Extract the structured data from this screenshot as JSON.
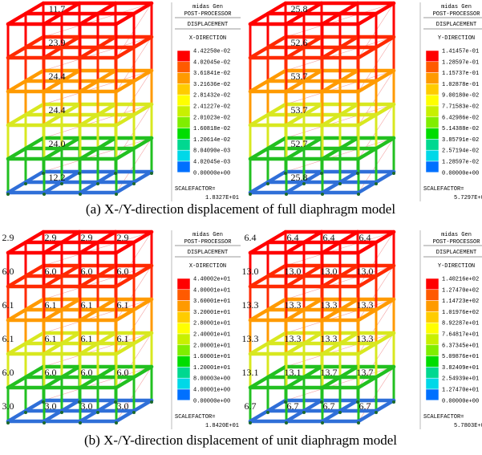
{
  "legend_colors": [
    "#ff0000",
    "#ff5a00",
    "#ff9a00",
    "#ffcc00",
    "#ffff00",
    "#c8f000",
    "#80ee00",
    "#00dd00",
    "#00d890",
    "#00d8e8",
    "#0070ff"
  ],
  "captions": [
    "(a) X-/Y-direction displacement of full diaphragm model",
    "(b) X-/Y-direction displacement of unit diaphragm model"
  ],
  "panels": [
    {
      "labels": [
        [
          "11.7"
        ],
        [
          "23.9"
        ],
        [
          "24.4"
        ],
        [
          "24.4"
        ],
        [
          "24.0"
        ],
        [
          "12.2"
        ]
      ],
      "legend": {
        "brand": "midas Gen",
        "header": "POST-PROCESSOR",
        "quantity": "DISPLACEMENT",
        "direction": "X-DIRECTION",
        "values": [
          "4.42250e-02",
          "4.02045e-02",
          "3.61841e-02",
          "3.21636e-02",
          "2.81432e-02",
          "2.41227e-02",
          "2.01023e-02",
          "1.60818e-02",
          "1.20614e-02",
          "8.04090e-03",
          "4.02045e-03",
          "0.00000e+00"
        ],
        "scale_label": "SCALEFACTOR=",
        "scale_value": "1.8327E+01"
      }
    },
    {
      "labels": [
        [
          "25.8"
        ],
        [
          "52.6"
        ],
        [
          "53.7"
        ],
        [
          "53.7"
        ],
        [
          "52.7"
        ],
        [
          "25.8"
        ]
      ],
      "legend": {
        "brand": "midas Gen",
        "header": "POST-PROCESSOR",
        "quantity": "DISPLACEMENT",
        "direction": "Y-DIRECTION",
        "values": [
          "1.41457e-01",
          "1.28597e-01",
          "1.15737e-01",
          "1.02878e-01",
          "9.00180e-02",
          "7.71583e-02",
          "6.42986e-02",
          "5.14388e-02",
          "3.85791e-02",
          "2.57194e-02",
          "1.28597e-02",
          "0.00000e+00"
        ],
        "scale_label": "SCALEFACTOR=",
        "scale_value": "5.7297E+00"
      }
    },
    {
      "labels": [
        [
          "2.9",
          "2.9",
          "2.9",
          "2.9"
        ],
        [
          "6.0",
          "6.0",
          "6.0",
          "6.0"
        ],
        [
          "6.1",
          "6.1",
          "6.1",
          "6.1"
        ],
        [
          "6.1",
          "6.1",
          "6.1",
          "6.1"
        ],
        [
          "6.0",
          "6.0",
          "6.0",
          "6.0"
        ],
        [
          "3.0",
          "3.0",
          "3.0",
          "3.0"
        ]
      ],
      "legend": {
        "brand": "midas Gen",
        "header": "POST-PROCESSOR",
        "quantity": "DISPLACEMENT",
        "direction": "X-DIRECTION",
        "values": [
          "4.40002e+01",
          "4.00001e+01",
          "3.60001e+01",
          "3.20001e+01",
          "2.80001e+01",
          "2.40001e+01",
          "2.00001e+01",
          "1.60001e+01",
          "1.20001e+01",
          "8.00003e+00",
          "4.00001e+00",
          "0.00000e+00"
        ],
        "scale_label": "SCALEFACTOR=",
        "scale_value": "1.8420E+01"
      }
    },
    {
      "labels": [
        [
          "6.4",
          "6.4",
          "6.4",
          "6.4"
        ],
        [
          "13.0",
          "13.0",
          "13.0",
          "13.0"
        ],
        [
          "13.3",
          "13.3",
          "13.3",
          "13.3"
        ],
        [
          "13.3",
          "13.3",
          "13.3",
          "13.3"
        ],
        [
          "13.1",
          "13.1",
          "13.7",
          "13.7"
        ],
        [
          "6.7",
          "6.7",
          "6.7",
          "6.7"
        ]
      ],
      "legend": {
        "brand": "midas Gen",
        "header": "POST-PROCESSOR",
        "quantity": "DISPLACEMENT",
        "direction": "Y-DIRECTION",
        "values": [
          "1.40216e+02",
          "1.27470e+02",
          "1.14723e+02",
          "1.01976e+02",
          "8.92287e+01",
          "7.64817e+01",
          "6.37345e+01",
          "5.09876e+01",
          "3.82409e+01",
          "2.54939e+01",
          "1.27470e+01",
          "0.00000e+00"
        ],
        "scale_label": "SCALEFACTOR=",
        "scale_value": "5.7803E+00"
      }
    }
  ]
}
